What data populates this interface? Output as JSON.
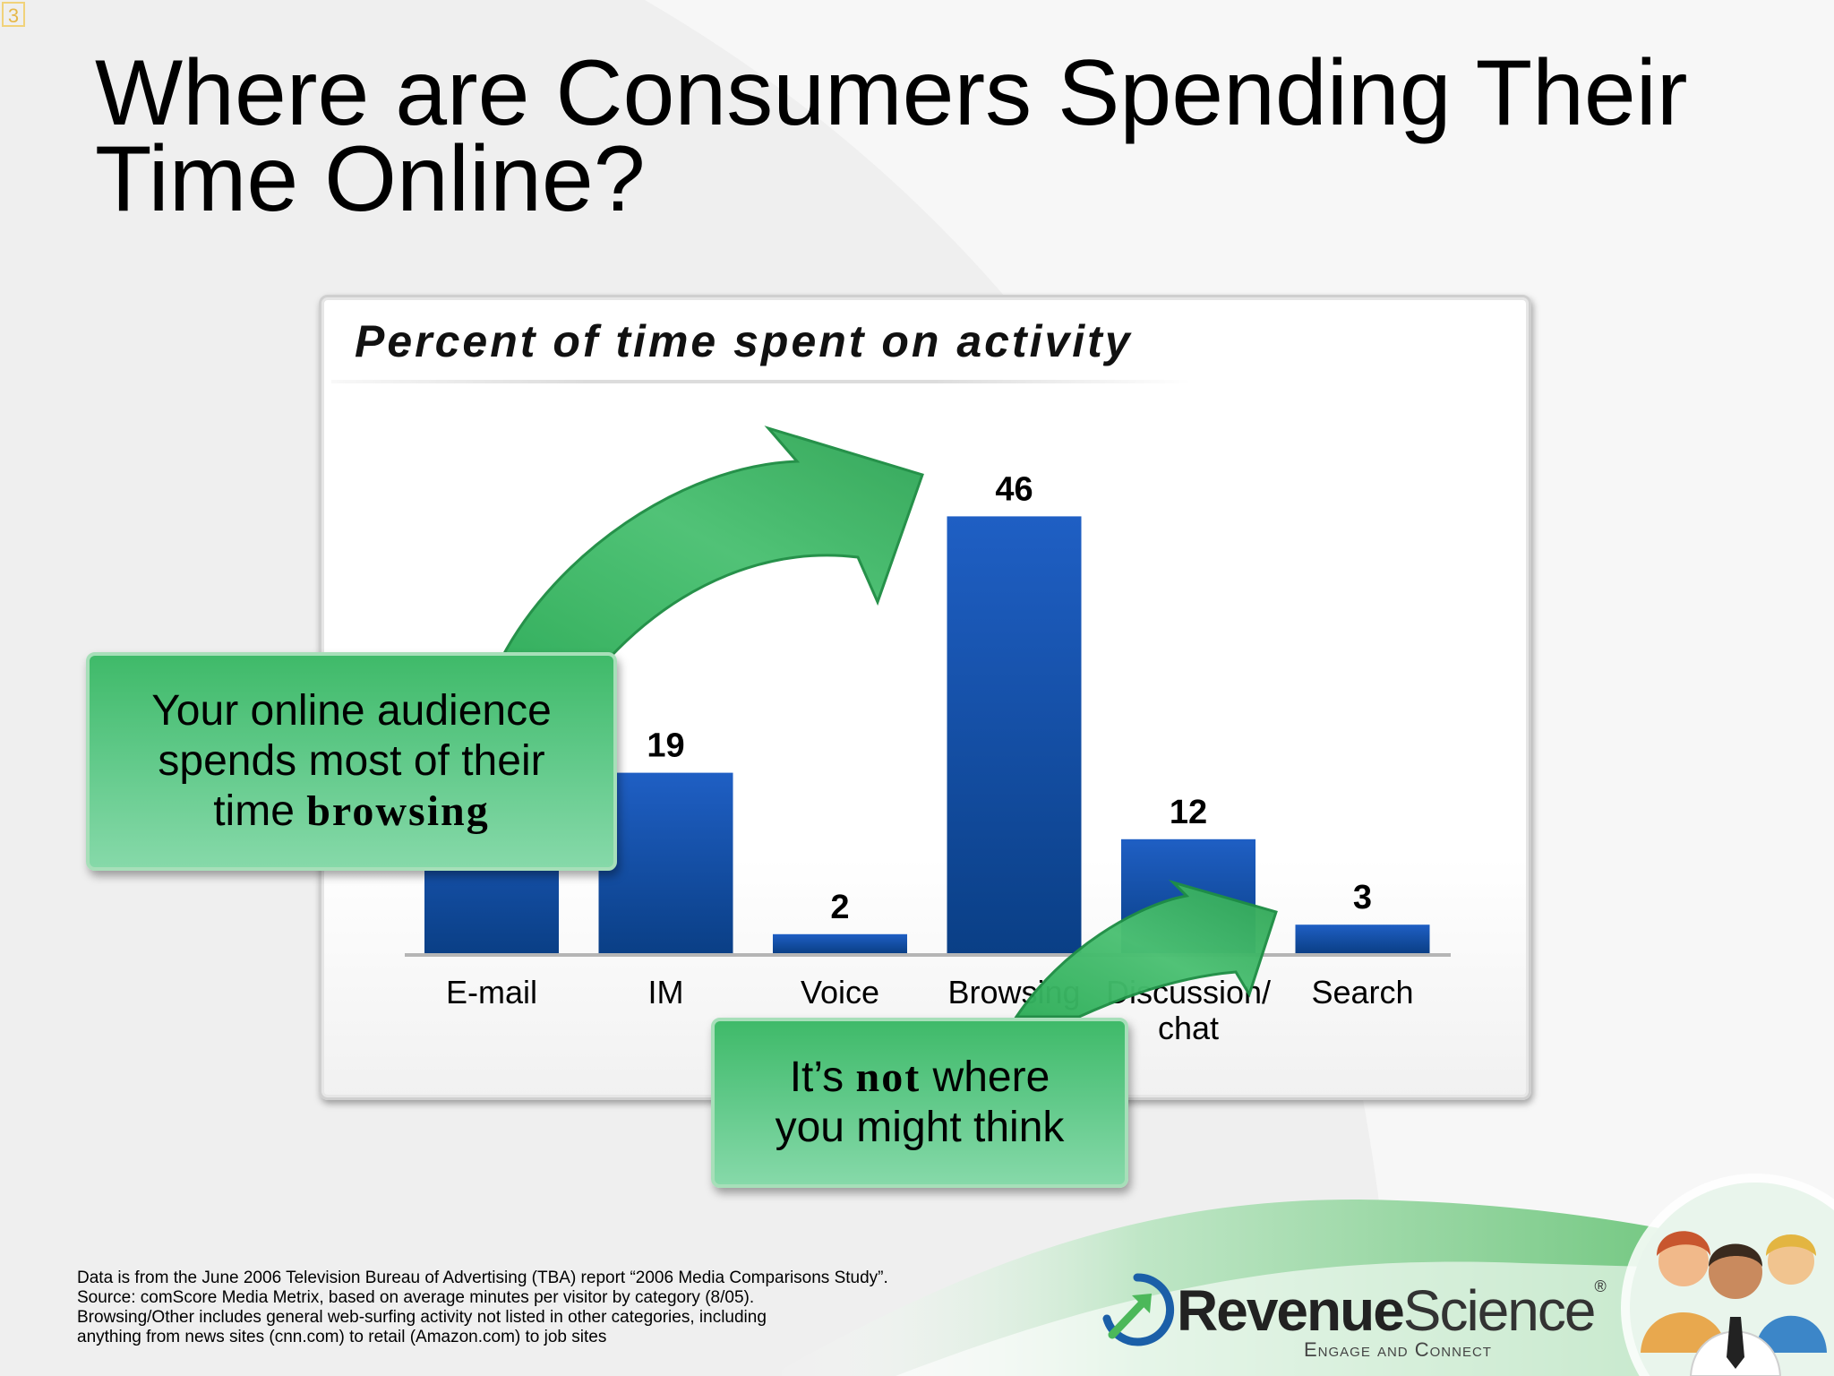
{
  "slide_number": "3",
  "title_lines": [
    "Where are Consumers Spending Their",
    "Time Online?"
  ],
  "chart_data": {
    "type": "bar",
    "title": "Percent of time spent on activity",
    "categories": [
      [
        "E-mail"
      ],
      [
        "IM"
      ],
      [
        "Voice"
      ],
      [
        "Browsing"
      ],
      [
        "Discussion/",
        "chat"
      ],
      [
        "Search"
      ]
    ],
    "values": [
      18,
      19,
      2,
      46,
      12,
      3
    ],
    "data_labels": [
      "",
      "19",
      "2",
      "46",
      "12",
      "3"
    ],
    "ylim": [
      0,
      50
    ],
    "grid": false,
    "legend": "none",
    "bar_color": "#1f5fc4",
    "bar_color_dark": "#0a3f86"
  },
  "callouts": {
    "audience": {
      "lines": [
        "Your online audience",
        "spends most of their"
      ],
      "line3_prefix": "time ",
      "line3_emphasis": "browsing"
    },
    "not_where": {
      "emphasis": "not",
      "prefix": "It’s ",
      "suffix": " where",
      "line2": "you might think"
    }
  },
  "footnote": [
    "Data is from the June 2006 Television Bureau of Advertising (TBA) report “2006 Media Comparisons Study”.",
    "Source:  comScore Media Metrix, based on average minutes per visitor by category (8/05).",
    "Browsing/Other includes general web-surfing activity not listed in other categories, including",
    "anything from news sites (cnn.com) to retail (Amazon.com) to job sites"
  ],
  "brand": {
    "name_bold": "Revenue",
    "name_light": "Science",
    "reg": "®",
    "tagline": "Engage and Connect"
  },
  "colors": {
    "accent_green": "#3fba69",
    "bar_blue": "#1f5fc4"
  },
  "icons": [
    "brand-logo-icon",
    "people-icon"
  ]
}
